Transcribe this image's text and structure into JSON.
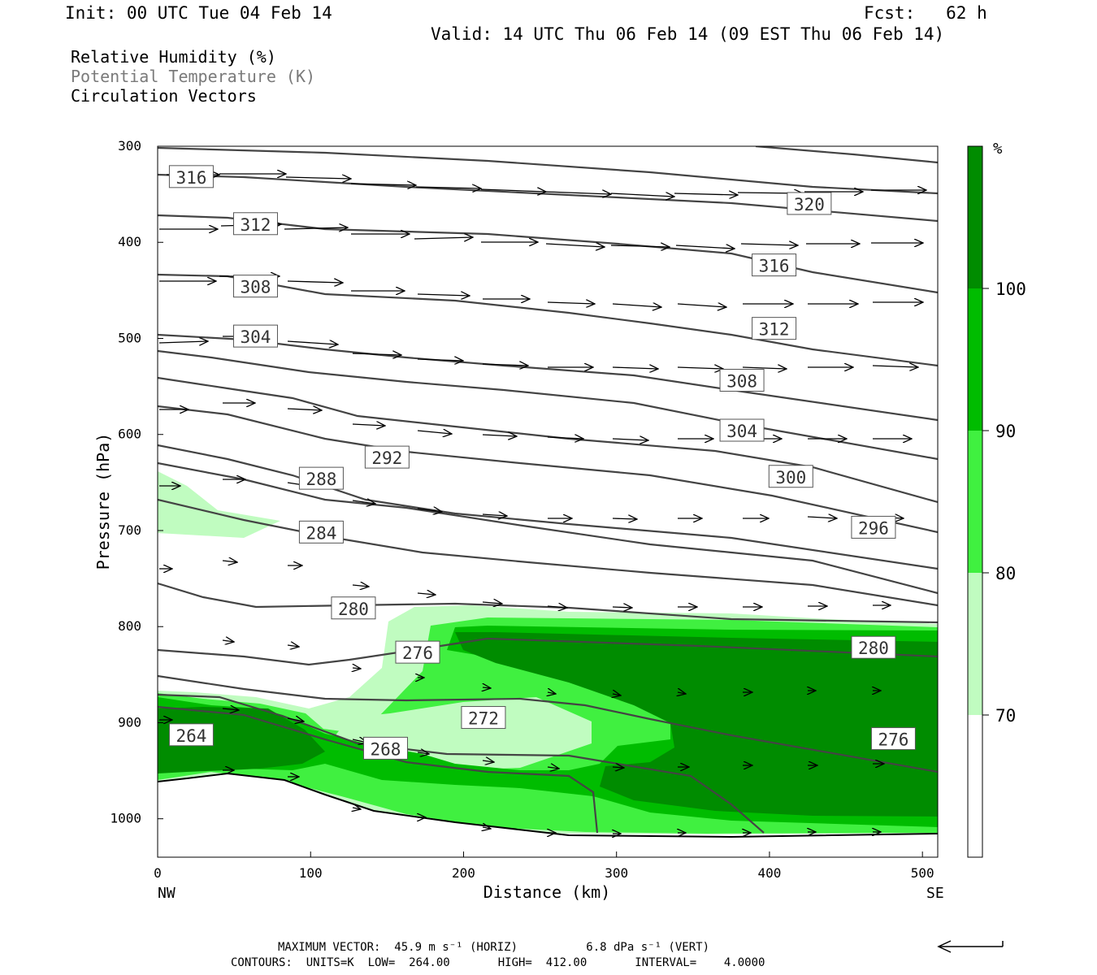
{
  "header": {
    "init": "Init: 00 UTC Tue 04 Feb 14",
    "fcst": "Fcst:   62 h",
    "valid": "Valid: 14 UTC Thu 06 Feb 14 (09 EST Thu 06 Feb 14)"
  },
  "legend": {
    "rh": "Relative Humidity (%)",
    "theta": "Potential Temperature (K)",
    "vectors": "Circulation Vectors"
  },
  "footer": {
    "max_vector": "MAXIMUM VECTOR:  45.9 m s⁻¹ (HORIZ)          6.8 dPa s⁻¹ (VERT)",
    "contours": "CONTOURS:  UNITS=K  LOW=  264.00       HIGH=  412.00       INTERVAL=    4.0000"
  },
  "colors": {
    "rh_70_80": "#c0fcc0",
    "rh_80_90": "#40f040",
    "rh_90_100": "#00bc00",
    "rh_100": "#008c00",
    "contour": "#444444"
  },
  "chart_data": {
    "type": "cross-section",
    "xlabel": "Distance (km)",
    "ylabel": "Pressure (hPa)",
    "xlim": [
      0,
      510
    ],
    "ylim": [
      1040,
      300
    ],
    "x_ticks": [
      0,
      100,
      200,
      300,
      400,
      500
    ],
    "y_ticks": [
      300,
      400,
      500,
      600,
      700,
      800,
      900,
      1000
    ],
    "x_end_labels": [
      "NW",
      "SE"
    ],
    "colorbar": {
      "unit": "%",
      "levels": [
        70,
        80,
        90,
        100
      ],
      "colors": [
        "#ffffff",
        "#c0fcc0",
        "#40f040",
        "#00bc00",
        "#008c00"
      ]
    },
    "contour_labels": [
      {
        "text": "316",
        "x": 22,
        "p": 332
      },
      {
        "text": "312",
        "x": 64,
        "p": 381
      },
      {
        "text": "308",
        "x": 64,
        "p": 446
      },
      {
        "text": "304",
        "x": 64,
        "p": 498
      },
      {
        "text": "320",
        "x": 426,
        "p": 360
      },
      {
        "text": "316",
        "x": 403,
        "p": 424
      },
      {
        "text": "312",
        "x": 403,
        "p": 490
      },
      {
        "text": "308",
        "x": 382,
        "p": 544
      },
      {
        "text": "304",
        "x": 382,
        "p": 596
      },
      {
        "text": "292",
        "x": 150,
        "p": 624
      },
      {
        "text": "288",
        "x": 107,
        "p": 646
      },
      {
        "text": "300",
        "x": 414,
        "p": 644
      },
      {
        "text": "284",
        "x": 107,
        "p": 702
      },
      {
        "text": "296",
        "x": 468,
        "p": 697
      },
      {
        "text": "280",
        "x": 128,
        "p": 781
      },
      {
        "text": "276",
        "x": 170,
        "p": 827
      },
      {
        "text": "280",
        "x": 468,
        "p": 822
      },
      {
        "text": "272",
        "x": 213,
        "p": 895
      },
      {
        "text": "264",
        "x": 22,
        "p": 913
      },
      {
        "text": "268",
        "x": 149,
        "p": 927
      },
      {
        "text": "276",
        "x": 481,
        "p": 917
      }
    ]
  }
}
